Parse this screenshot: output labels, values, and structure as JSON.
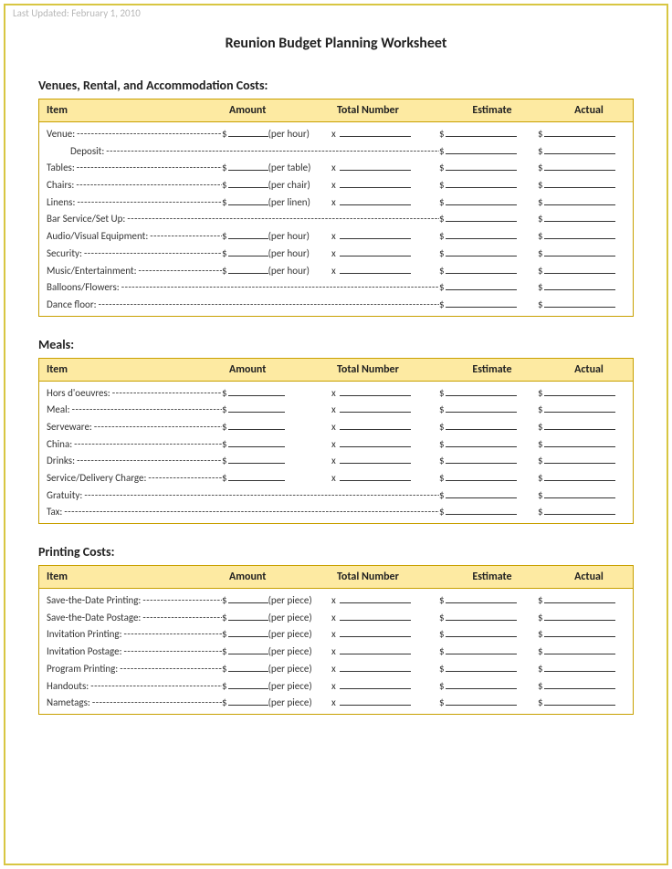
{
  "colors": {
    "frame_border": "#d8c642",
    "table_border": "#c8a000",
    "header_bg": "#fdeaa2",
    "text": "#333333",
    "muted": "#b8b8b8",
    "background": "#ffffff"
  },
  "last_updated": "Last Updated: February 1, 2010",
  "title": "Reunion Budget Planning Worksheet",
  "column_headers": {
    "item": "Item",
    "amount": "Amount",
    "total_number": "Total Number",
    "estimate": "Estimate",
    "actual": "Actual"
  },
  "sections": [
    {
      "title": "Venues, Rental, and Accommodation Costs:",
      "rows": [
        {
          "label": "Venue:",
          "unit": "(per hour)",
          "mode": "unit"
        },
        {
          "label": "Deposit:",
          "mode": "long",
          "indent": true
        },
        {
          "label": "Tables:",
          "unit": "(per table)",
          "mode": "unit"
        },
        {
          "label": "Chairs:",
          "unit": "(per chair)",
          "mode": "unit"
        },
        {
          "label": "Linens:",
          "unit": "(per linen)",
          "mode": "unit"
        },
        {
          "label": "Bar Service/Set Up:",
          "mode": "long"
        },
        {
          "label": "Audio/Visual Equipment:",
          "unit": "(per hour)",
          "mode": "unit"
        },
        {
          "label": "Security:",
          "unit": "(per hour)",
          "mode": "unit"
        },
        {
          "label": "Music/Entertainment:",
          "unit": "(per hour)",
          "mode": "unit"
        },
        {
          "label": "Balloons/Flowers:",
          "mode": "long"
        },
        {
          "label": "Dance floor:",
          "mode": "long"
        }
      ]
    },
    {
      "title": "Meals:",
      "rows": [
        {
          "label": "Hors d'oeuvres:",
          "mode": "blank"
        },
        {
          "label": "Meal:",
          "mode": "blank"
        },
        {
          "label": "Serveware:",
          "mode": "blank"
        },
        {
          "label": "China:",
          "mode": "blank"
        },
        {
          "label": "Drinks:",
          "mode": "blank"
        },
        {
          "label": "Service/Delivery Charge:",
          "mode": "blank"
        },
        {
          "label": "Gratuity:",
          "mode": "long"
        },
        {
          "label": "Tax:",
          "mode": "long"
        }
      ]
    },
    {
      "title": "Printing Costs:",
      "rows": [
        {
          "label": "Save-the-Date Printing:",
          "unit": "(per piece)",
          "mode": "unit-sp"
        },
        {
          "label": "Save-the-Date Postage:",
          "unit": "(per piece)",
          "mode": "unit-sp"
        },
        {
          "label": "Invitation Printing:",
          "unit": "(per piece)",
          "mode": "unit-sp"
        },
        {
          "label": "Invitation Postage:",
          "unit": "(per piece)",
          "mode": "unit-sp"
        },
        {
          "label": "Program Printing:",
          "unit": "(per piece)",
          "mode": "unit-sp"
        },
        {
          "label": "Handouts:",
          "unit": "(per piece)",
          "mode": "unit-sp"
        },
        {
          "label": "Nametags:",
          "unit": "(per piece)",
          "mode": "unit-sp"
        }
      ]
    }
  ]
}
